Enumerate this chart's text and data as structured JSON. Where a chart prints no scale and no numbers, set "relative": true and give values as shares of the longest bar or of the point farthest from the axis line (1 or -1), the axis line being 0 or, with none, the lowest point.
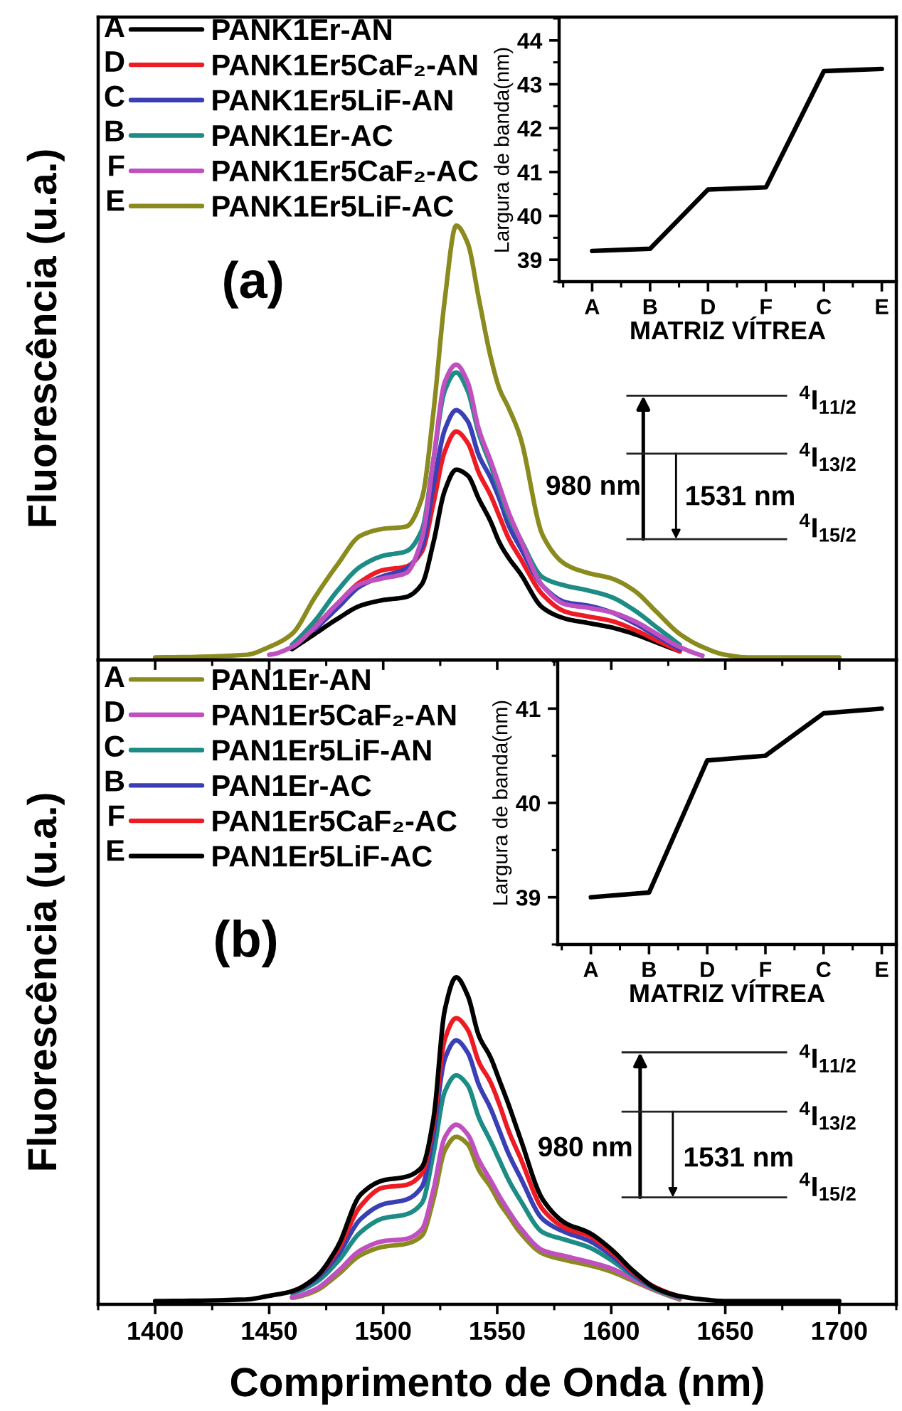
{
  "chart_data": [
    {
      "type": "line",
      "relative": true,
      "x": [
        1400,
        1440,
        1450,
        1460,
        1470,
        1480,
        1490,
        1500,
        1510,
        1517,
        1522,
        1527,
        1532,
        1537,
        1542,
        1547,
        1551,
        1555,
        1560,
        1570,
        1580,
        1590,
        1600,
        1610,
        1620,
        1630,
        1640,
        1650,
        1660,
        1700
      ],
      "xlim": [
        1375,
        1725
      ],
      "xticks": [
        1400,
        1450,
        1500,
        1550,
        1600,
        1650,
        1700
      ],
      "tick_labels": false,
      "ylabel": "Fluorescência (u.a.)",
      "legend": "top left",
      "series": [
        {
          "name": "PANK1Er-AN",
          "color": "#000000",
          "values": [
            null,
            null,
            null,
            0.025,
            0.06,
            0.095,
            0.125,
            0.138,
            0.145,
            0.175,
            0.27,
            0.39,
            0.438,
            0.425,
            0.37,
            0.32,
            0.27,
            0.235,
            0.2,
            0.12,
            0.095,
            0.085,
            0.075,
            0.06,
            0.04,
            0.02,
            null,
            null,
            null,
            null
          ]
        },
        {
          "name": "PANK1Er5CaF₂-AN",
          "color": "#ed1c24",
          "values": [
            null,
            null,
            null,
            null,
            0.075,
            0.13,
            0.18,
            0.207,
            0.215,
            0.25,
            0.36,
            0.48,
            0.526,
            0.5,
            0.43,
            0.38,
            0.33,
            0.28,
            0.235,
            0.15,
            0.111,
            0.1,
            0.09,
            0.07,
            0.045,
            0.02,
            null,
            null,
            null,
            null
          ]
        },
        {
          "name": "PANK1Er5LiF-AN",
          "color": "#3a3fb5",
          "values": [
            null,
            null,
            null,
            null,
            0.07,
            0.12,
            0.17,
            0.193,
            0.21,
            0.26,
            0.4,
            0.53,
            0.575,
            0.55,
            0.47,
            0.42,
            0.37,
            0.31,
            0.26,
            0.17,
            0.133,
            0.125,
            0.11,
            0.085,
            0.055,
            0.025,
            null,
            null,
            null,
            null
          ]
        },
        {
          "name": "PANK1Er-AC",
          "color": "#1d8c85",
          "values": [
            null,
            null,
            null,
            0.035,
            0.09,
            0.16,
            0.215,
            0.24,
            0.25,
            0.3,
            0.46,
            0.62,
            0.662,
            0.62,
            0.52,
            0.45,
            0.39,
            0.33,
            0.28,
            0.19,
            0.171,
            0.16,
            0.145,
            0.115,
            0.075,
            0.035,
            null,
            null,
            null,
            null
          ]
        },
        {
          "name": "PANK1Er5CaF₂-AC",
          "color": "#c050c0",
          "values": [
            null,
            null,
            0.012,
            0.03,
            0.075,
            0.13,
            0.175,
            0.188,
            0.2,
            0.28,
            0.46,
            0.64,
            0.68,
            0.64,
            0.53,
            0.46,
            0.4,
            0.34,
            0.28,
            0.17,
            0.128,
            0.12,
            0.11,
            0.09,
            0.06,
            0.03,
            0.01,
            null,
            null,
            null
          ]
        },
        {
          "name": "PANK1Er5LiF-AC",
          "color": "#8a8a1e",
          "values": [
            0.006,
            0.012,
            0.03,
            0.06,
            0.144,
            0.22,
            0.286,
            0.302,
            0.307,
            0.373,
            0.57,
            0.83,
            1,
            0.96,
            0.83,
            0.7,
            0.624,
            0.58,
            0.515,
            0.286,
            0.22,
            0.2,
            0.188,
            0.16,
            0.11,
            0.06,
            0.03,
            0.012,
            0.006,
            0.006
          ]
        }
      ],
      "annotations": [
        "A",
        "D",
        "C",
        "B",
        "F",
        "E",
        "(a)",
        "980 nm",
        "1531 nm",
        "$^{4}$I$_{11/2}$",
        "$^{4}$I$_{13/2}$",
        "$^{4}$I$_{15/2}$"
      ]
    },
    {
      "type": "line",
      "categories": [
        "A",
        "B",
        "D",
        "F",
        "C",
        "E"
      ],
      "values": [
        39.2,
        39.25,
        40.6,
        40.65,
        43.3,
        43.35
      ],
      "color": "#000000",
      "ylim": [
        38.5,
        44.5
      ],
      "yticks": [
        39,
        40,
        41,
        42,
        43,
        44
      ],
      "xlabel": "MATRIZ VÍTREA",
      "ylabel": "Largura de banda(nm)"
    },
    {
      "type": "line",
      "relative": true,
      "x": [
        1400,
        1440,
        1450,
        1460,
        1470,
        1480,
        1490,
        1500,
        1510,
        1517,
        1522,
        1527,
        1532,
        1537,
        1542,
        1547,
        1551,
        1555,
        1560,
        1570,
        1580,
        1590,
        1600,
        1610,
        1620,
        1630,
        1640,
        1650,
        1660,
        1700
      ],
      "xlim": [
        1375,
        1725
      ],
      "xticks": [
        1400,
        1450,
        1500,
        1550,
        1600,
        1650,
        1700
      ],
      "tick_labels": "x",
      "xlabel": "Comprimento de Onda (nm)",
      "ylabel": "Fluorescência (u.a.)",
      "legend": "top left",
      "series": [
        {
          "name": "PAN1Er-AN",
          "color": "#8a8a1e",
          "values": [
            null,
            null,
            null,
            0.02,
            0.04,
            0.09,
            0.15,
            0.176,
            0.185,
            0.21,
            0.32,
            0.47,
            0.512,
            0.49,
            0.41,
            0.36,
            0.31,
            0.27,
            0.22,
            0.155,
            0.135,
            0.12,
            0.1,
            0.07,
            0.04,
            0.015,
            null,
            null,
            null,
            null
          ]
        },
        {
          "name": "PAN1Er5CaF₂-AN",
          "color": "#c050c0",
          "values": [
            null,
            null,
            null,
            0.022,
            0.045,
            0.1,
            0.165,
            0.193,
            0.2,
            0.23,
            0.35,
            0.51,
            0.549,
            0.52,
            0.44,
            0.38,
            0.33,
            0.285,
            0.235,
            0.165,
            0.147,
            0.13,
            0.11,
            0.075,
            0.042,
            0.018,
            null,
            null,
            null,
            null
          ]
        },
        {
          "name": "PAN1Er5LiF-AN",
          "color": "#1d8c85",
          "values": [
            null,
            null,
            null,
            0.035,
            0.065,
            0.13,
            0.22,
            0.263,
            0.275,
            0.31,
            0.46,
            0.65,
            0.7,
            0.67,
            0.57,
            0.5,
            0.44,
            0.38,
            0.32,
            0.22,
            0.197,
            0.175,
            0.135,
            0.085,
            0.045,
            0.022,
            null,
            null,
            null,
            null
          ]
        },
        {
          "name": "PAN1Er-AC",
          "color": "#3a3fb5",
          "values": [
            null,
            null,
            null,
            0.038,
            0.075,
            0.15,
            0.26,
            0.306,
            0.32,
            0.36,
            0.52,
            0.75,
            0.807,
            0.77,
            0.67,
            0.6,
            0.53,
            0.46,
            0.39,
            0.26,
            0.22,
            0.195,
            0.15,
            0.09,
            0.048,
            0.024,
            null,
            null,
            null,
            null
          ]
        },
        {
          "name": "PAN1Er5CaF₂-AC",
          "color": "#ed1c24",
          "values": [
            null,
            null,
            null,
            0.04,
            0.08,
            0.165,
            0.3,
            0.357,
            0.365,
            0.4,
            0.55,
            0.81,
            0.875,
            0.84,
            0.74,
            0.68,
            0.61,
            0.53,
            0.45,
            0.29,
            0.233,
            0.21,
            0.16,
            0.095,
            0.05,
            0.025,
            null,
            null,
            null,
            null
          ]
        },
        {
          "name": "PAN1Er5LiF-AC",
          "color": "#000000",
          "values": [
            0.01,
            0.015,
            0.026,
            0.04,
            0.08,
            0.176,
            0.335,
            0.379,
            0.39,
            0.42,
            0.567,
            0.9,
            1,
            0.945,
            0.82,
            0.756,
            0.684,
            0.61,
            0.51,
            0.32,
            0.248,
            0.22,
            0.168,
            0.1,
            0.048,
            0.025,
            0.015,
            0.01,
            0.01,
            0.01
          ]
        }
      ],
      "annotations": [
        "A",
        "D",
        "C",
        "B",
        "F",
        "E",
        "(b)",
        "980 nm",
        "1531 nm",
        "$^{4}$I$_{11/2}$",
        "$^{4}$I$_{13/2}$",
        "$^{4}$I$_{15/2}$"
      ]
    },
    {
      "type": "line",
      "categories": [
        "A",
        "B",
        "D",
        "F",
        "C",
        "E"
      ],
      "values": [
        39.0,
        39.05,
        40.45,
        40.5,
        40.95,
        41.0
      ],
      "color": "#000000",
      "ylim": [
        38.5,
        41.5
      ],
      "yticks": [
        39,
        40,
        41
      ],
      "xlabel": "MATRIZ VÍTREA",
      "ylabel": "Largura de banda(nm)"
    }
  ]
}
